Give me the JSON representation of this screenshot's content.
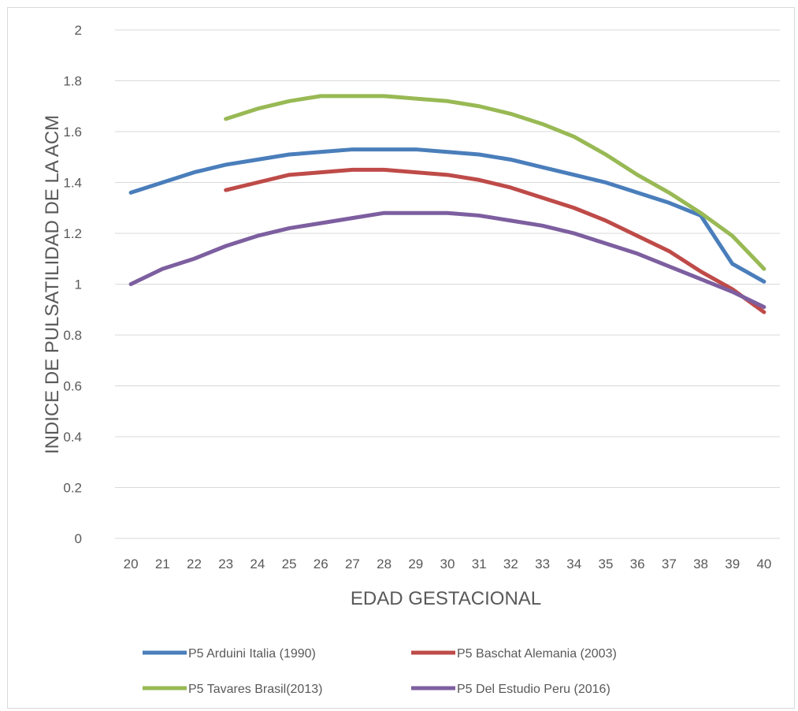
{
  "chart_data": {
    "type": "line",
    "title": "",
    "xlabel": "EDAD GESTACIONAL",
    "ylabel": "INDICE DE PULSATILIDAD DE LA ACM",
    "x": [
      20,
      21,
      22,
      23,
      24,
      25,
      26,
      27,
      28,
      29,
      30,
      31,
      32,
      33,
      34,
      35,
      36,
      37,
      38,
      39,
      40
    ],
    "ylim": [
      0,
      2
    ],
    "yticks": [
      0,
      0.2,
      0.4,
      0.6,
      0.8,
      1,
      1.2,
      1.4,
      1.6,
      1.8,
      2
    ],
    "ytick_labels": [
      "0",
      "0.2",
      "0.4",
      "0.6",
      "0.8",
      "1",
      "1.2",
      "1.4",
      "1.6",
      "1.8",
      "2"
    ],
    "grid": true,
    "legend_position": "bottom",
    "series": [
      {
        "name": "P5 Arduini Italia (1990)",
        "color": "#4a7ebb",
        "values": [
          1.36,
          1.4,
          1.44,
          1.47,
          1.49,
          1.51,
          1.52,
          1.53,
          1.53,
          1.53,
          1.52,
          1.51,
          1.49,
          1.46,
          1.43,
          1.4,
          1.36,
          1.32,
          1.27,
          1.08,
          1.01
        ]
      },
      {
        "name": "P5 Baschat Alemania  (2003)",
        "color": "#be4b48",
        "values": [
          null,
          null,
          null,
          1.37,
          1.4,
          1.43,
          1.44,
          1.45,
          1.45,
          1.44,
          1.43,
          1.41,
          1.38,
          1.34,
          1.3,
          1.25,
          1.19,
          1.13,
          1.05,
          0.98,
          0.89
        ]
      },
      {
        "name": "P5 Tavares Brasil(2013)",
        "color": "#98b954",
        "values": [
          null,
          null,
          null,
          1.65,
          1.69,
          1.72,
          1.74,
          1.74,
          1.74,
          1.73,
          1.72,
          1.7,
          1.67,
          1.63,
          1.58,
          1.51,
          1.43,
          1.36,
          1.28,
          1.19,
          1.06
        ]
      },
      {
        "name": "P5 Del Estudio Peru (2016)",
        "color": "#7d5fa0",
        "values": [
          1.0,
          1.06,
          1.1,
          1.15,
          1.19,
          1.22,
          1.24,
          1.26,
          1.28,
          1.28,
          1.28,
          1.27,
          1.25,
          1.23,
          1.2,
          1.16,
          1.12,
          1.07,
          1.02,
          0.97,
          0.91
        ]
      }
    ]
  }
}
